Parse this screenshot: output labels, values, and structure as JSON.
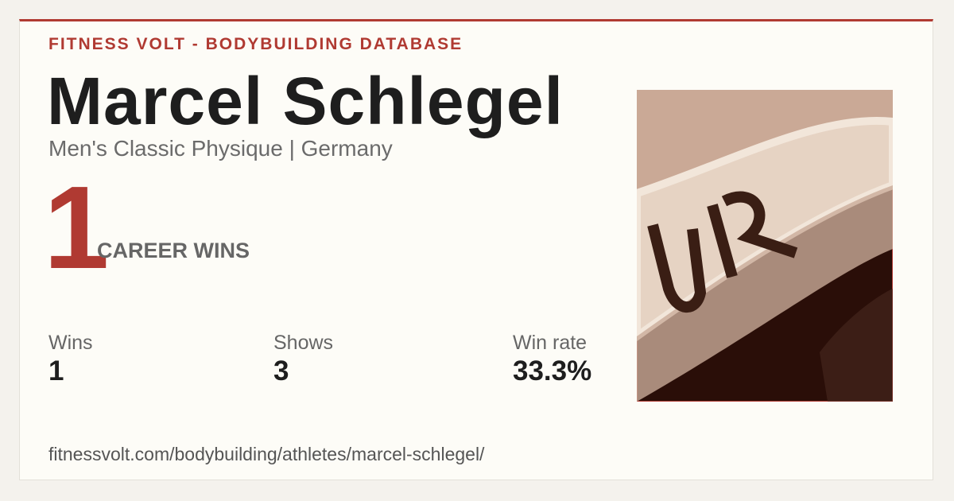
{
  "header": {
    "brand": "FITNESS VOLT - BODYBUILDING DATABASE"
  },
  "athlete": {
    "name": "Marcel Schlegel",
    "subtitle": "Men's Classic Physique | Germany"
  },
  "hero": {
    "number": "1",
    "label": "CAREER WINS"
  },
  "stats": [
    {
      "label": "Wins",
      "value": "1"
    },
    {
      "label": "Shows",
      "value": "3"
    },
    {
      "label": "Win rate",
      "value": "33.3%"
    }
  ],
  "footer": {
    "url": "fitnessvolt.com/bodybuilding/athletes/marcel-schlegel/"
  }
}
